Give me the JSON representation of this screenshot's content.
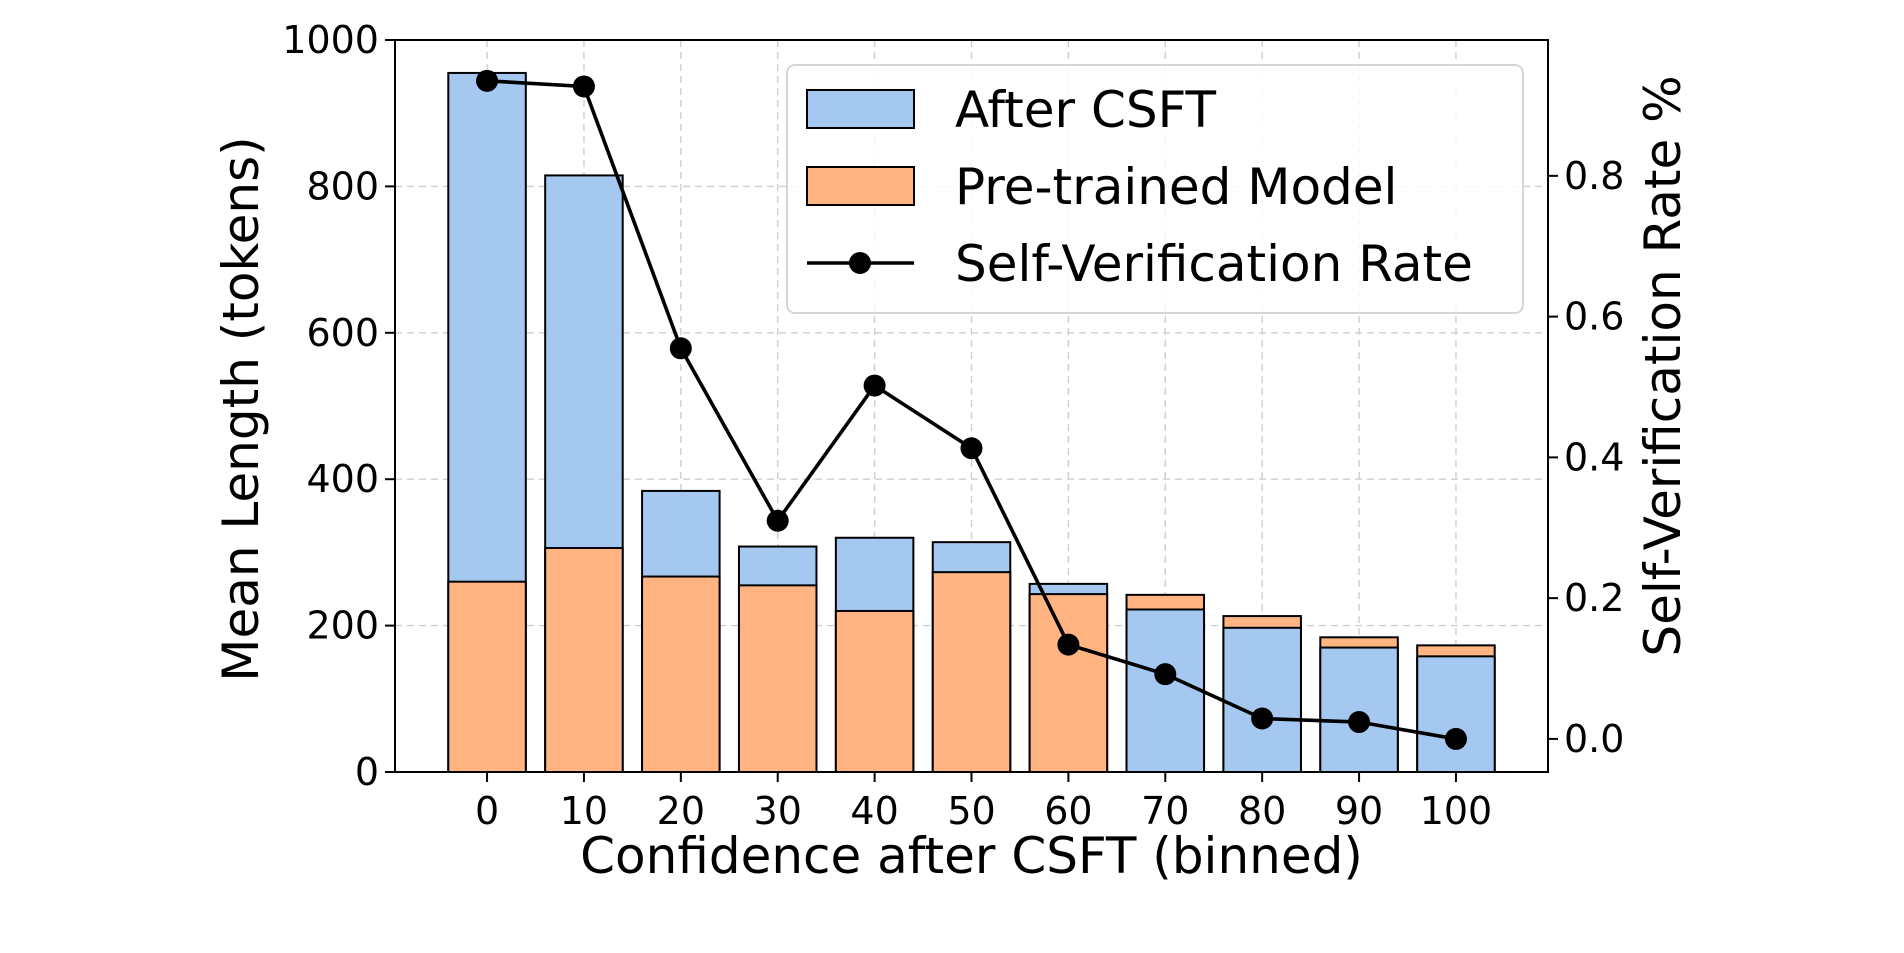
{
  "chart_data": {
    "type": "bar",
    "title": "",
    "xlabel": "Confidence after CSFT (binned)",
    "ylabel": "Mean Length (tokens)",
    "y2label": "Self-Verification Rate %",
    "categories": [
      "0",
      "10",
      "20",
      "30",
      "40",
      "50",
      "60",
      "70",
      "80",
      "90",
      "100"
    ],
    "ylim": [
      0,
      1000
    ],
    "yticks": [
      "0",
      "200",
      "400",
      "600",
      "800",
      "1000"
    ],
    "y2lim": [
      -0.047,
      0.993
    ],
    "y2ticks": [
      "0.0",
      "0.2",
      "0.4",
      "0.6",
      "0.8"
    ],
    "grid": true,
    "legend_position": "top-right",
    "series": [
      {
        "name": "After CSFT",
        "kind": "bar",
        "color": "#a4c8f0",
        "values": [
          955,
          815,
          384,
          308,
          320,
          314,
          257,
          222,
          197,
          170,
          158
        ]
      },
      {
        "name": "Pre-trained Model",
        "kind": "bar",
        "color": "#ffb482",
        "values": [
          260,
          306,
          267,
          255,
          220,
          273,
          243,
          242,
          213,
          184,
          173
        ]
      },
      {
        "name": "Self-Verification Rate",
        "kind": "line",
        "axis": "right",
        "color": "#000000",
        "values": [
          0.935,
          0.927,
          0.555,
          0.31,
          0.502,
          0.413,
          0.134,
          0.092,
          0.029,
          0.024,
          0.0
        ]
      }
    ]
  }
}
